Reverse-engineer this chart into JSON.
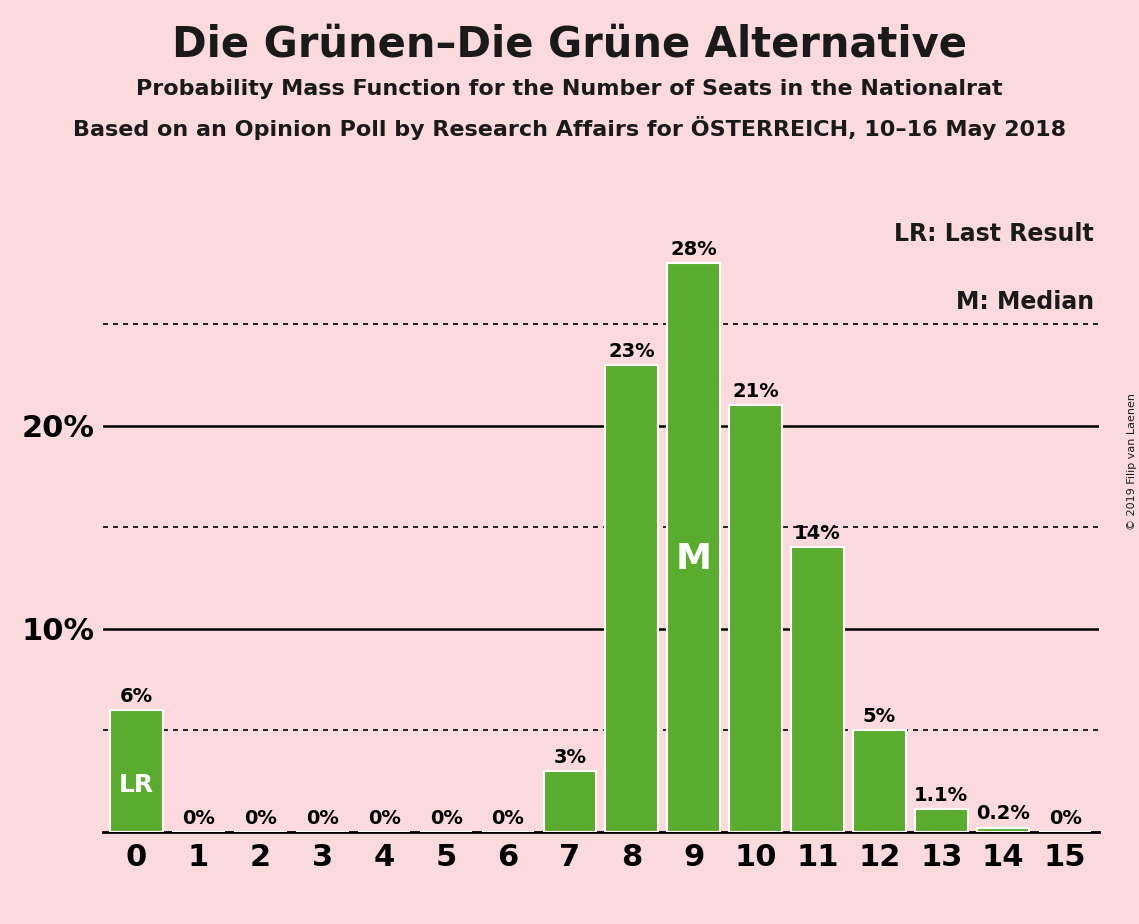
{
  "title": "Die Grünen–Die Grüne Alternative",
  "subtitle1": "Probability Mass Function for the Number of Seats in the Nationalrat",
  "subtitle2": "Based on an Opinion Poll by Research Affairs for ÖSTERREICH, 10–16 May 2018",
  "copyright": "© 2019 Filip van Laenen",
  "legend_lr": "LR: Last Result",
  "legend_m": "M: Median",
  "seats": [
    0,
    1,
    2,
    3,
    4,
    5,
    6,
    7,
    8,
    9,
    10,
    11,
    12,
    13,
    14,
    15
  ],
  "probabilities": [
    0.06,
    0.0,
    0.0,
    0.0,
    0.0,
    0.0,
    0.0,
    0.03,
    0.23,
    0.28,
    0.21,
    0.14,
    0.05,
    0.011,
    0.002,
    0.0
  ],
  "prob_labels": [
    "6%",
    "0%",
    "0%",
    "0%",
    "0%",
    "0%",
    "0%",
    "3%",
    "23%",
    "28%",
    "21%",
    "14%",
    "5%",
    "1.1%",
    "0.2%",
    "0%"
  ],
  "show_label": [
    true,
    true,
    true,
    true,
    true,
    true,
    true,
    true,
    true,
    true,
    true,
    true,
    true,
    true,
    true,
    true
  ],
  "bar_color": "#5aac2e",
  "background_color": "#fadadd",
  "lr_seat": 0,
  "median_seat": 9,
  "solid_gridlines": [
    0.1,
    0.2
  ],
  "dotted_gridlines": [
    0.05,
    0.15,
    0.25
  ],
  "ylim_max": 0.305,
  "yticks": [
    0.1,
    0.2
  ],
  "ytick_labels": [
    "10%",
    "20%"
  ],
  "title_fontsize": 30,
  "subtitle_fontsize": 16,
  "axis_tick_fontsize": 22,
  "bar_label_fontsize": 14,
  "legend_fontsize": 17,
  "lr_fontsize": 18,
  "m_fontsize": 26
}
